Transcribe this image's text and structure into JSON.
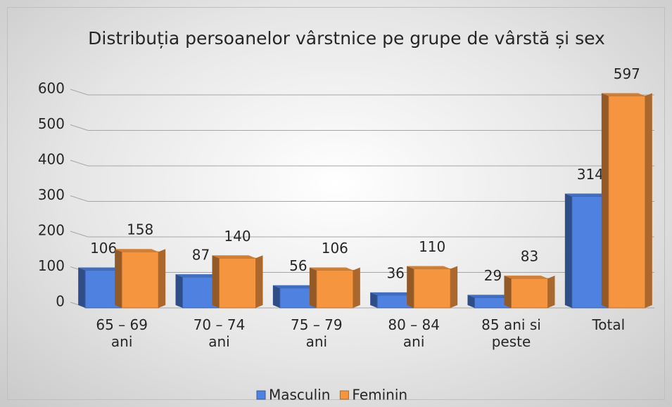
{
  "chart_data": {
    "type": "bar3d",
    "title": "Distribuția persoanelor vârstnice pe grupe de vârstă și sex",
    "categories": [
      "65 – 69 ani",
      "70 – 74 ani",
      "75 – 79 ani",
      "80 – 84 ani",
      "85 ani si peste",
      "Total"
    ],
    "series": [
      {
        "name": "Masculin",
        "color": "#4f81e0",
        "values": [
          106,
          87,
          56,
          36,
          29,
          314
        ]
      },
      {
        "name": "Feminin",
        "color": "#f5953f",
        "values": [
          158,
          140,
          106,
          110,
          83,
          597
        ]
      }
    ],
    "ylim": [
      0,
      600
    ],
    "yticks": [
      0,
      100,
      200,
      300,
      400,
      500,
      600
    ],
    "grid": true,
    "legend": "bottom"
  }
}
